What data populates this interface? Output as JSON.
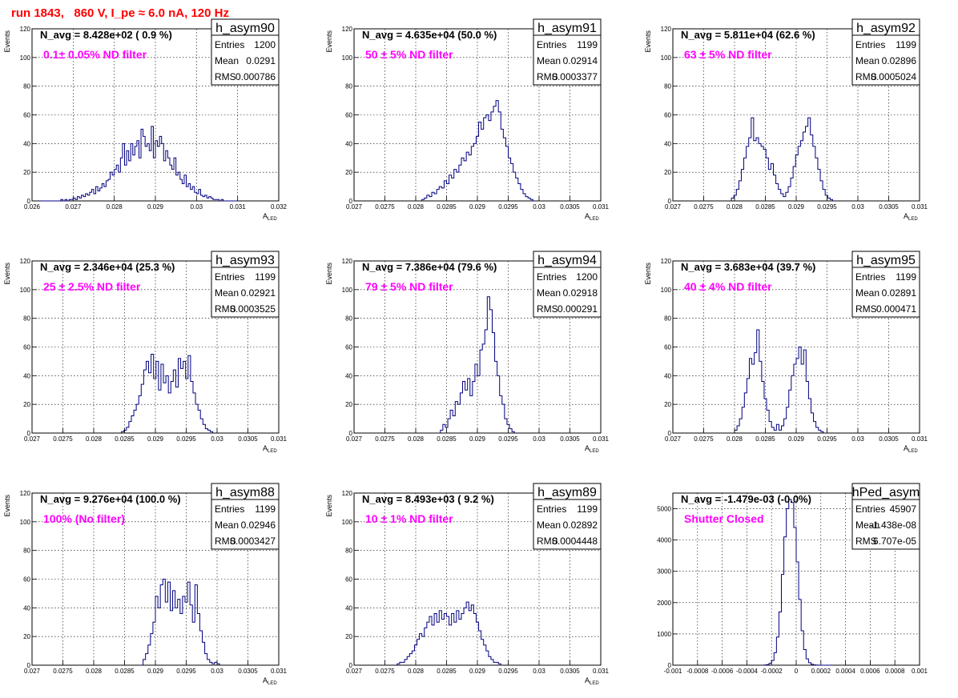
{
  "page_title": "run 1843,   860 V, I_pe ≈ 6.0 nA, 120 Hz",
  "colors": {
    "title": "#ff0000",
    "filter_label": "#ff00ff",
    "histogram": "#000080",
    "grid": "#000000"
  },
  "chart_data": [
    {
      "type": "histogram",
      "name": "h_asym90",
      "n_avg": "N_avg = 8.428e+02 ( 0.9 %)",
      "filter": "0.1± 0.05% ND filter",
      "stats": [
        [
          "Entries",
          "1200"
        ],
        [
          "Mean",
          "0.0291"
        ],
        [
          "RMS",
          "0.000786"
        ]
      ],
      "ylabel": "Events",
      "xlabel": "A",
      "xlabel_sub": "LED",
      "xlim": [
        0.026,
        0.032
      ],
      "ylim": [
        0,
        120
      ],
      "xticks": [
        [
          "0.026",
          0.026
        ],
        [
          "0.027",
          0.027
        ],
        [
          "0.028",
          0.028
        ],
        [
          "0.029",
          0.029
        ],
        [
          "0.03",
          0.03
        ],
        [
          "0.031",
          0.031
        ],
        [
          "0.032",
          0.032
        ]
      ],
      "yticks": [
        [
          "0",
          0
        ],
        [
          "20",
          20
        ],
        [
          "40",
          40
        ],
        [
          "60",
          60
        ],
        [
          "80",
          80
        ],
        [
          "100",
          100
        ],
        [
          "120",
          120
        ]
      ],
      "bin_start": 0.0262,
      "bin_width": 5e-05,
      "counts": [
        0,
        0,
        0,
        0,
        0,
        0,
        0,
        0,
        0,
        0,
        1,
        0,
        1,
        0,
        1,
        1,
        2,
        1,
        3,
        2,
        4,
        3,
        5,
        4,
        6,
        8,
        5,
        10,
        7,
        9,
        12,
        10,
        14,
        15,
        20,
        18,
        22,
        25,
        20,
        30,
        40,
        25,
        35,
        28,
        40,
        32,
        38,
        42,
        30,
        50,
        45,
        38,
        40,
        35,
        52,
        30,
        42,
        38,
        45,
        40,
        28,
        35,
        30,
        25,
        22,
        30,
        18,
        20,
        15,
        12,
        18,
        10,
        12,
        8,
        10,
        6,
        5,
        8,
        4,
        3,
        4,
        2,
        3,
        2,
        1,
        1,
        1,
        0,
        1,
        0,
        0,
        0,
        0,
        0,
        0,
        0
      ]
    },
    {
      "type": "histogram",
      "name": "h_asym91",
      "n_avg": "N_avg = 4.635e+04 (50.0 %)",
      "filter": "50 ± 5% ND filter",
      "stats": [
        [
          "Entries",
          "1199"
        ],
        [
          "Mean",
          "0.02914"
        ],
        [
          "RMS",
          "0.0003377"
        ]
      ],
      "ylabel": "Events",
      "xlabel": "A",
      "xlabel_sub": "LED",
      "xlim": [
        0.027,
        0.031
      ],
      "ylim": [
        0,
        120
      ],
      "xticks": [
        [
          "0.027",
          0.027
        ],
        [
          "0.0275",
          0.0275
        ],
        [
          "0.028",
          0.028
        ],
        [
          "0.0285",
          0.0285
        ],
        [
          "0.029",
          0.029
        ],
        [
          "0.0295",
          0.0295
        ],
        [
          "0.03",
          0.03
        ],
        [
          "0.0305",
          0.0305
        ],
        [
          "0.031",
          0.031
        ]
      ],
      "yticks": [
        [
          "0",
          0
        ],
        [
          "20",
          20
        ],
        [
          "40",
          40
        ],
        [
          "60",
          60
        ],
        [
          "80",
          80
        ],
        [
          "100",
          100
        ],
        [
          "120",
          120
        ]
      ],
      "bin_start": 0.0281,
      "bin_width": 4e-05,
      "counts": [
        1,
        2,
        4,
        3,
        6,
        5,
        8,
        10,
        9,
        14,
        12,
        18,
        16,
        22,
        20,
        25,
        30,
        28,
        34,
        32,
        38,
        40,
        45,
        55,
        50,
        58,
        60,
        56,
        62,
        66,
        70,
        62,
        50,
        44,
        38,
        30,
        26,
        20,
        16,
        12,
        8,
        5,
        3,
        2,
        1,
        0
      ]
    },
    {
      "type": "histogram",
      "name": "h_asym92",
      "n_avg": "N_avg = 5.811e+04 (62.6 %)",
      "filter": "63 ± 5% ND filter",
      "stats": [
        [
          "Entries",
          "1199"
        ],
        [
          "Mean",
          "0.02896"
        ],
        [
          "RMS",
          "0.0005024"
        ]
      ],
      "ylabel": "Events",
      "xlabel": "A",
      "xlabel_sub": "LED",
      "xlim": [
        0.027,
        0.031
      ],
      "ylim": [
        0,
        120
      ],
      "xticks": [
        [
          "0.027",
          0.027
        ],
        [
          "0.0275",
          0.0275
        ],
        [
          "0.028",
          0.028
        ],
        [
          "0.0285",
          0.0285
        ],
        [
          "0.029",
          0.029
        ],
        [
          "0.0295",
          0.0295
        ],
        [
          "0.03",
          0.03
        ],
        [
          "0.0305",
          0.0305
        ],
        [
          "0.031",
          0.031
        ]
      ],
      "yticks": [
        [
          "0",
          0
        ],
        [
          "20",
          20
        ],
        [
          "40",
          40
        ],
        [
          "60",
          60
        ],
        [
          "80",
          80
        ],
        [
          "100",
          100
        ],
        [
          "120",
          120
        ]
      ],
      "bin_start": 0.02795,
      "bin_width": 4e-05,
      "counts": [
        2,
        4,
        8,
        14,
        22,
        30,
        38,
        44,
        58,
        42,
        44,
        40,
        38,
        36,
        30,
        22,
        26,
        18,
        12,
        8,
        5,
        3,
        6,
        10,
        16,
        24,
        32,
        38,
        42,
        48,
        52,
        58,
        46,
        38,
        30,
        22,
        14,
        8,
        4,
        2,
        1
      ]
    },
    {
      "type": "histogram",
      "name": "h_asym93",
      "n_avg": "N_avg = 2.346e+04 (25.3 %)",
      "filter": "25 ± 2.5% ND filter",
      "stats": [
        [
          "Entries",
          "1199"
        ],
        [
          "Mean",
          "0.02921"
        ],
        [
          "RMS",
          "0.0003525"
        ]
      ],
      "ylabel": "Events",
      "xlabel": "A",
      "xlabel_sub": "LED",
      "xlim": [
        0.027,
        0.031
      ],
      "ylim": [
        0,
        120
      ],
      "xticks": [
        [
          "0.027",
          0.027
        ],
        [
          "0.0275",
          0.0275
        ],
        [
          "0.028",
          0.028
        ],
        [
          "0.0285",
          0.0285
        ],
        [
          "0.029",
          0.029
        ],
        [
          "0.0295",
          0.0295
        ],
        [
          "0.03",
          0.03
        ],
        [
          "0.0305",
          0.0305
        ],
        [
          "0.031",
          0.031
        ]
      ],
      "yticks": [
        [
          "0",
          0
        ],
        [
          "20",
          20
        ],
        [
          "40",
          40
        ],
        [
          "60",
          60
        ],
        [
          "80",
          80
        ],
        [
          "100",
          100
        ],
        [
          "120",
          120
        ]
      ],
      "bin_start": 0.02845,
      "bin_width": 4e-05,
      "counts": [
        1,
        2,
        4,
        8,
        12,
        16,
        20,
        26,
        34,
        44,
        50,
        42,
        55,
        38,
        50,
        30,
        48,
        35,
        40,
        28,
        36,
        44,
        32,
        52,
        45,
        50,
        38,
        54,
        36,
        28,
        20,
        16,
        10,
        6,
        3,
        2,
        1
      ]
    },
    {
      "type": "histogram",
      "name": "h_asym94",
      "n_avg": "N_avg = 7.386e+04 (79.6 %)",
      "filter": "79 ± 5% ND filter",
      "stats": [
        [
          "Entries",
          "1200"
        ],
        [
          "Mean",
          "0.02918"
        ],
        [
          "RMS",
          "0.000291"
        ]
      ],
      "ylabel": "Events",
      "xlabel": "A",
      "xlabel_sub": "LED",
      "xlim": [
        0.027,
        0.031
      ],
      "ylim": [
        0,
        120
      ],
      "xticks": [
        [
          "0.027",
          0.027
        ],
        [
          "0.0275",
          0.0275
        ],
        [
          "0.028",
          0.028
        ],
        [
          "0.0285",
          0.0285
        ],
        [
          "0.029",
          0.029
        ],
        [
          "0.0295",
          0.0295
        ],
        [
          "0.03",
          0.03
        ],
        [
          "0.0305",
          0.0305
        ],
        [
          "0.031",
          0.031
        ]
      ],
      "yticks": [
        [
          "0",
          0
        ],
        [
          "20",
          20
        ],
        [
          "40",
          40
        ],
        [
          "60",
          60
        ],
        [
          "80",
          80
        ],
        [
          "100",
          100
        ],
        [
          "120",
          120
        ]
      ],
      "bin_start": 0.0284,
      "bin_width": 4e-05,
      "counts": [
        2,
        6,
        4,
        10,
        16,
        12,
        22,
        20,
        28,
        36,
        30,
        38,
        26,
        36,
        48,
        40,
        58,
        62,
        72,
        95,
        86,
        70,
        50,
        40,
        26,
        20,
        10,
        6,
        3,
        1
      ]
    },
    {
      "type": "histogram",
      "name": "h_asym95",
      "n_avg": "N_avg = 3.683e+04 (39.7 %)",
      "filter": "40 ± 4% ND filter",
      "stats": [
        [
          "Entries",
          "1199"
        ],
        [
          "Mean",
          "0.02891"
        ],
        [
          "RMS",
          "0.000471"
        ]
      ],
      "ylabel": "Events",
      "xlabel": "A",
      "xlabel_sub": "LED",
      "xlim": [
        0.027,
        0.031
      ],
      "ylim": [
        0,
        120
      ],
      "xticks": [
        [
          "0.027",
          0.027
        ],
        [
          "0.0275",
          0.0275
        ],
        [
          "0.028",
          0.028
        ],
        [
          "0.0285",
          0.0285
        ],
        [
          "0.029",
          0.029
        ],
        [
          "0.0295",
          0.0295
        ],
        [
          "0.03",
          0.03
        ],
        [
          "0.0305",
          0.0305
        ],
        [
          "0.031",
          0.031
        ]
      ],
      "yticks": [
        [
          "0",
          0
        ],
        [
          "20",
          20
        ],
        [
          "40",
          40
        ],
        [
          "60",
          60
        ],
        [
          "80",
          80
        ],
        [
          "100",
          100
        ],
        [
          "120",
          120
        ]
      ],
      "bin_start": 0.028,
      "bin_width": 4e-05,
      "counts": [
        2,
        5,
        10,
        18,
        28,
        38,
        52,
        48,
        56,
        72,
        50,
        36,
        24,
        16,
        8,
        4,
        2,
        6,
        2,
        5,
        10,
        18,
        30,
        40,
        48,
        52,
        60,
        48,
        58,
        36,
        24,
        14,
        8,
        4,
        2,
        1
      ]
    },
    {
      "type": "histogram",
      "name": "h_asym88",
      "n_avg": "N_avg = 9.276e+04 (100.0 %)",
      "filter": "100% (No filter)",
      "stats": [
        [
          "Entries",
          "1199"
        ],
        [
          "Mean",
          "0.02946"
        ],
        [
          "RMS",
          "0.0003427"
        ]
      ],
      "ylabel": "Events",
      "xlabel": "A",
      "xlabel_sub": "LED",
      "xlim": [
        0.027,
        0.031
      ],
      "ylim": [
        0,
        120
      ],
      "xticks": [
        [
          "0.027",
          0.027
        ],
        [
          "0.0275",
          0.0275
        ],
        [
          "0.028",
          0.028
        ],
        [
          "0.0285",
          0.0285
        ],
        [
          "0.029",
          0.029
        ],
        [
          "0.0295",
          0.0295
        ],
        [
          "0.03",
          0.03
        ],
        [
          "0.0305",
          0.0305
        ],
        [
          "0.031",
          0.031
        ]
      ],
      "yticks": [
        [
          "0",
          0
        ],
        [
          "20",
          20
        ],
        [
          "40",
          40
        ],
        [
          "60",
          60
        ],
        [
          "80",
          80
        ],
        [
          "100",
          100
        ],
        [
          "120",
          120
        ]
      ],
      "bin_start": 0.0288,
      "bin_width": 4e-05,
      "counts": [
        4,
        8,
        14,
        22,
        30,
        48,
        40,
        56,
        60,
        44,
        58,
        38,
        52,
        40,
        46,
        36,
        48,
        44,
        58,
        42,
        30,
        56,
        36,
        24,
        16,
        8,
        4,
        2,
        1,
        2,
        1
      ]
    },
    {
      "type": "histogram",
      "name": "h_asym89",
      "n_avg": "N_avg = 8.493e+03 ( 9.2 %)",
      "filter": "10 ± 1% ND filter",
      "stats": [
        [
          "Entries",
          "1199"
        ],
        [
          "Mean",
          "0.02892"
        ],
        [
          "RMS",
          "0.0004448"
        ]
      ],
      "ylabel": "Events",
      "xlabel": "A",
      "xlabel_sub": "LED",
      "xlim": [
        0.027,
        0.031
      ],
      "ylim": [
        0,
        120
      ],
      "xticks": [
        [
          "0.027",
          0.027
        ],
        [
          "0.0275",
          0.0275
        ],
        [
          "0.028",
          0.028
        ],
        [
          "0.0285",
          0.0285
        ],
        [
          "0.029",
          0.029
        ],
        [
          "0.0295",
          0.0295
        ],
        [
          "0.03",
          0.03
        ],
        [
          "0.0305",
          0.0305
        ],
        [
          "0.031",
          0.031
        ]
      ],
      "yticks": [
        [
          "0",
          0
        ],
        [
          "20",
          20
        ],
        [
          "40",
          40
        ],
        [
          "60",
          60
        ],
        [
          "80",
          80
        ],
        [
          "100",
          100
        ],
        [
          "120",
          120
        ]
      ],
      "bin_start": 0.0277,
      "bin_width": 4e-05,
      "counts": [
        1,
        2,
        2,
        4,
        6,
        8,
        10,
        14,
        18,
        22,
        20,
        26,
        30,
        34,
        28,
        36,
        30,
        38,
        32,
        36,
        34,
        28,
        36,
        30,
        38,
        32,
        36,
        40,
        44,
        38,
        42,
        36,
        30,
        24,
        18,
        14,
        10,
        6,
        4,
        2,
        2,
        1
      ]
    },
    {
      "type": "histogram",
      "name": "hPed_asym",
      "n_avg": "N_avg = -1.479e-03 (-0.0%)",
      "filter": "Shutter Closed",
      "stats": [
        [
          "Entries",
          "45907"
        ],
        [
          "Mean",
          "-1.438e-08"
        ],
        [
          "RMS",
          "6.707e-05"
        ]
      ],
      "ylabel": "",
      "xlabel": "",
      "xlabel_sub": "",
      "xlim": [
        -0.001,
        0.001
      ],
      "ylim": [
        0,
        5500
      ],
      "xticks": [
        [
          "-0.001",
          -0.001
        ],
        [
          "-0.0008",
          -0.0008
        ],
        [
          "-0.0006",
          -0.0006
        ],
        [
          "-0.0004",
          -0.0004
        ],
        [
          "-0.0002",
          -0.0002
        ],
        [
          "0",
          0
        ],
        [
          "0.0002",
          0.0002
        ],
        [
          "0.0004",
          0.0004
        ],
        [
          "0.0006",
          0.0006
        ],
        [
          "0.0008",
          0.0008
        ],
        [
          "0.001",
          0.001
        ]
      ],
      "yticks": [
        [
          "0",
          0
        ],
        [
          "1000",
          1000
        ],
        [
          "2000",
          2000
        ],
        [
          "3000",
          3000
        ],
        [
          "4000",
          4000
        ],
        [
          "5000",
          5000
        ]
      ],
      "bin_start": -0.00026,
      "bin_width": 2e-05,
      "counts": [
        5,
        20,
        60,
        150,
        400,
        900,
        1700,
        2900,
        4100,
        5000,
        5300,
        5200,
        4400,
        3300,
        2100,
        1100,
        500,
        200,
        80,
        30,
        10,
        3,
        0,
        0,
        0,
        0,
        0
      ]
    }
  ]
}
